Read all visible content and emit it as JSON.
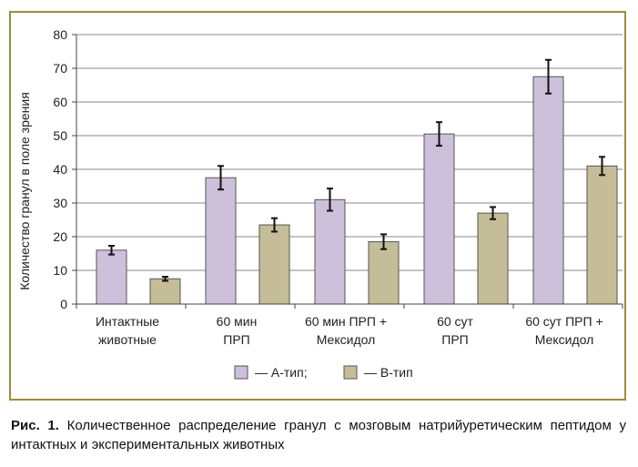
{
  "chart_data": {
    "type": "bar",
    "title": "",
    "xlabel": "",
    "ylabel": "Количество гранул в поле зрения",
    "ylim": [
      0,
      80
    ],
    "yticks": [
      0,
      10,
      20,
      30,
      40,
      50,
      60,
      70,
      80
    ],
    "grid": true,
    "legend_position": "bottom",
    "categories": [
      [
        "Интактные",
        "животные"
      ],
      [
        "60 мин",
        "ПРП"
      ],
      [
        "60 мин ПРП +",
        "Мексидол"
      ],
      [
        "60 сут",
        "ПРП"
      ],
      [
        "60 сут ПРП +",
        "Мексидол"
      ]
    ],
    "series": [
      {
        "name": "— А-тип;",
        "color": "#ccc0da",
        "values": [
          16,
          37.5,
          31,
          50.5,
          67.5
        ],
        "errors": [
          1.3,
          3.5,
          3.3,
          3.5,
          5
        ]
      },
      {
        "name": "— В-тип",
        "color": "#c4bd97",
        "values": [
          7.5,
          23.5,
          18.5,
          27,
          41
        ],
        "errors": [
          0.6,
          2,
          2.2,
          1.8,
          2.7
        ]
      }
    ]
  },
  "caption": {
    "prefix": "Рис. 1.",
    "text": " Количественное распределение гранул с мозговым натрийуретическим пептидом у интактных и экспериментальных животных"
  }
}
